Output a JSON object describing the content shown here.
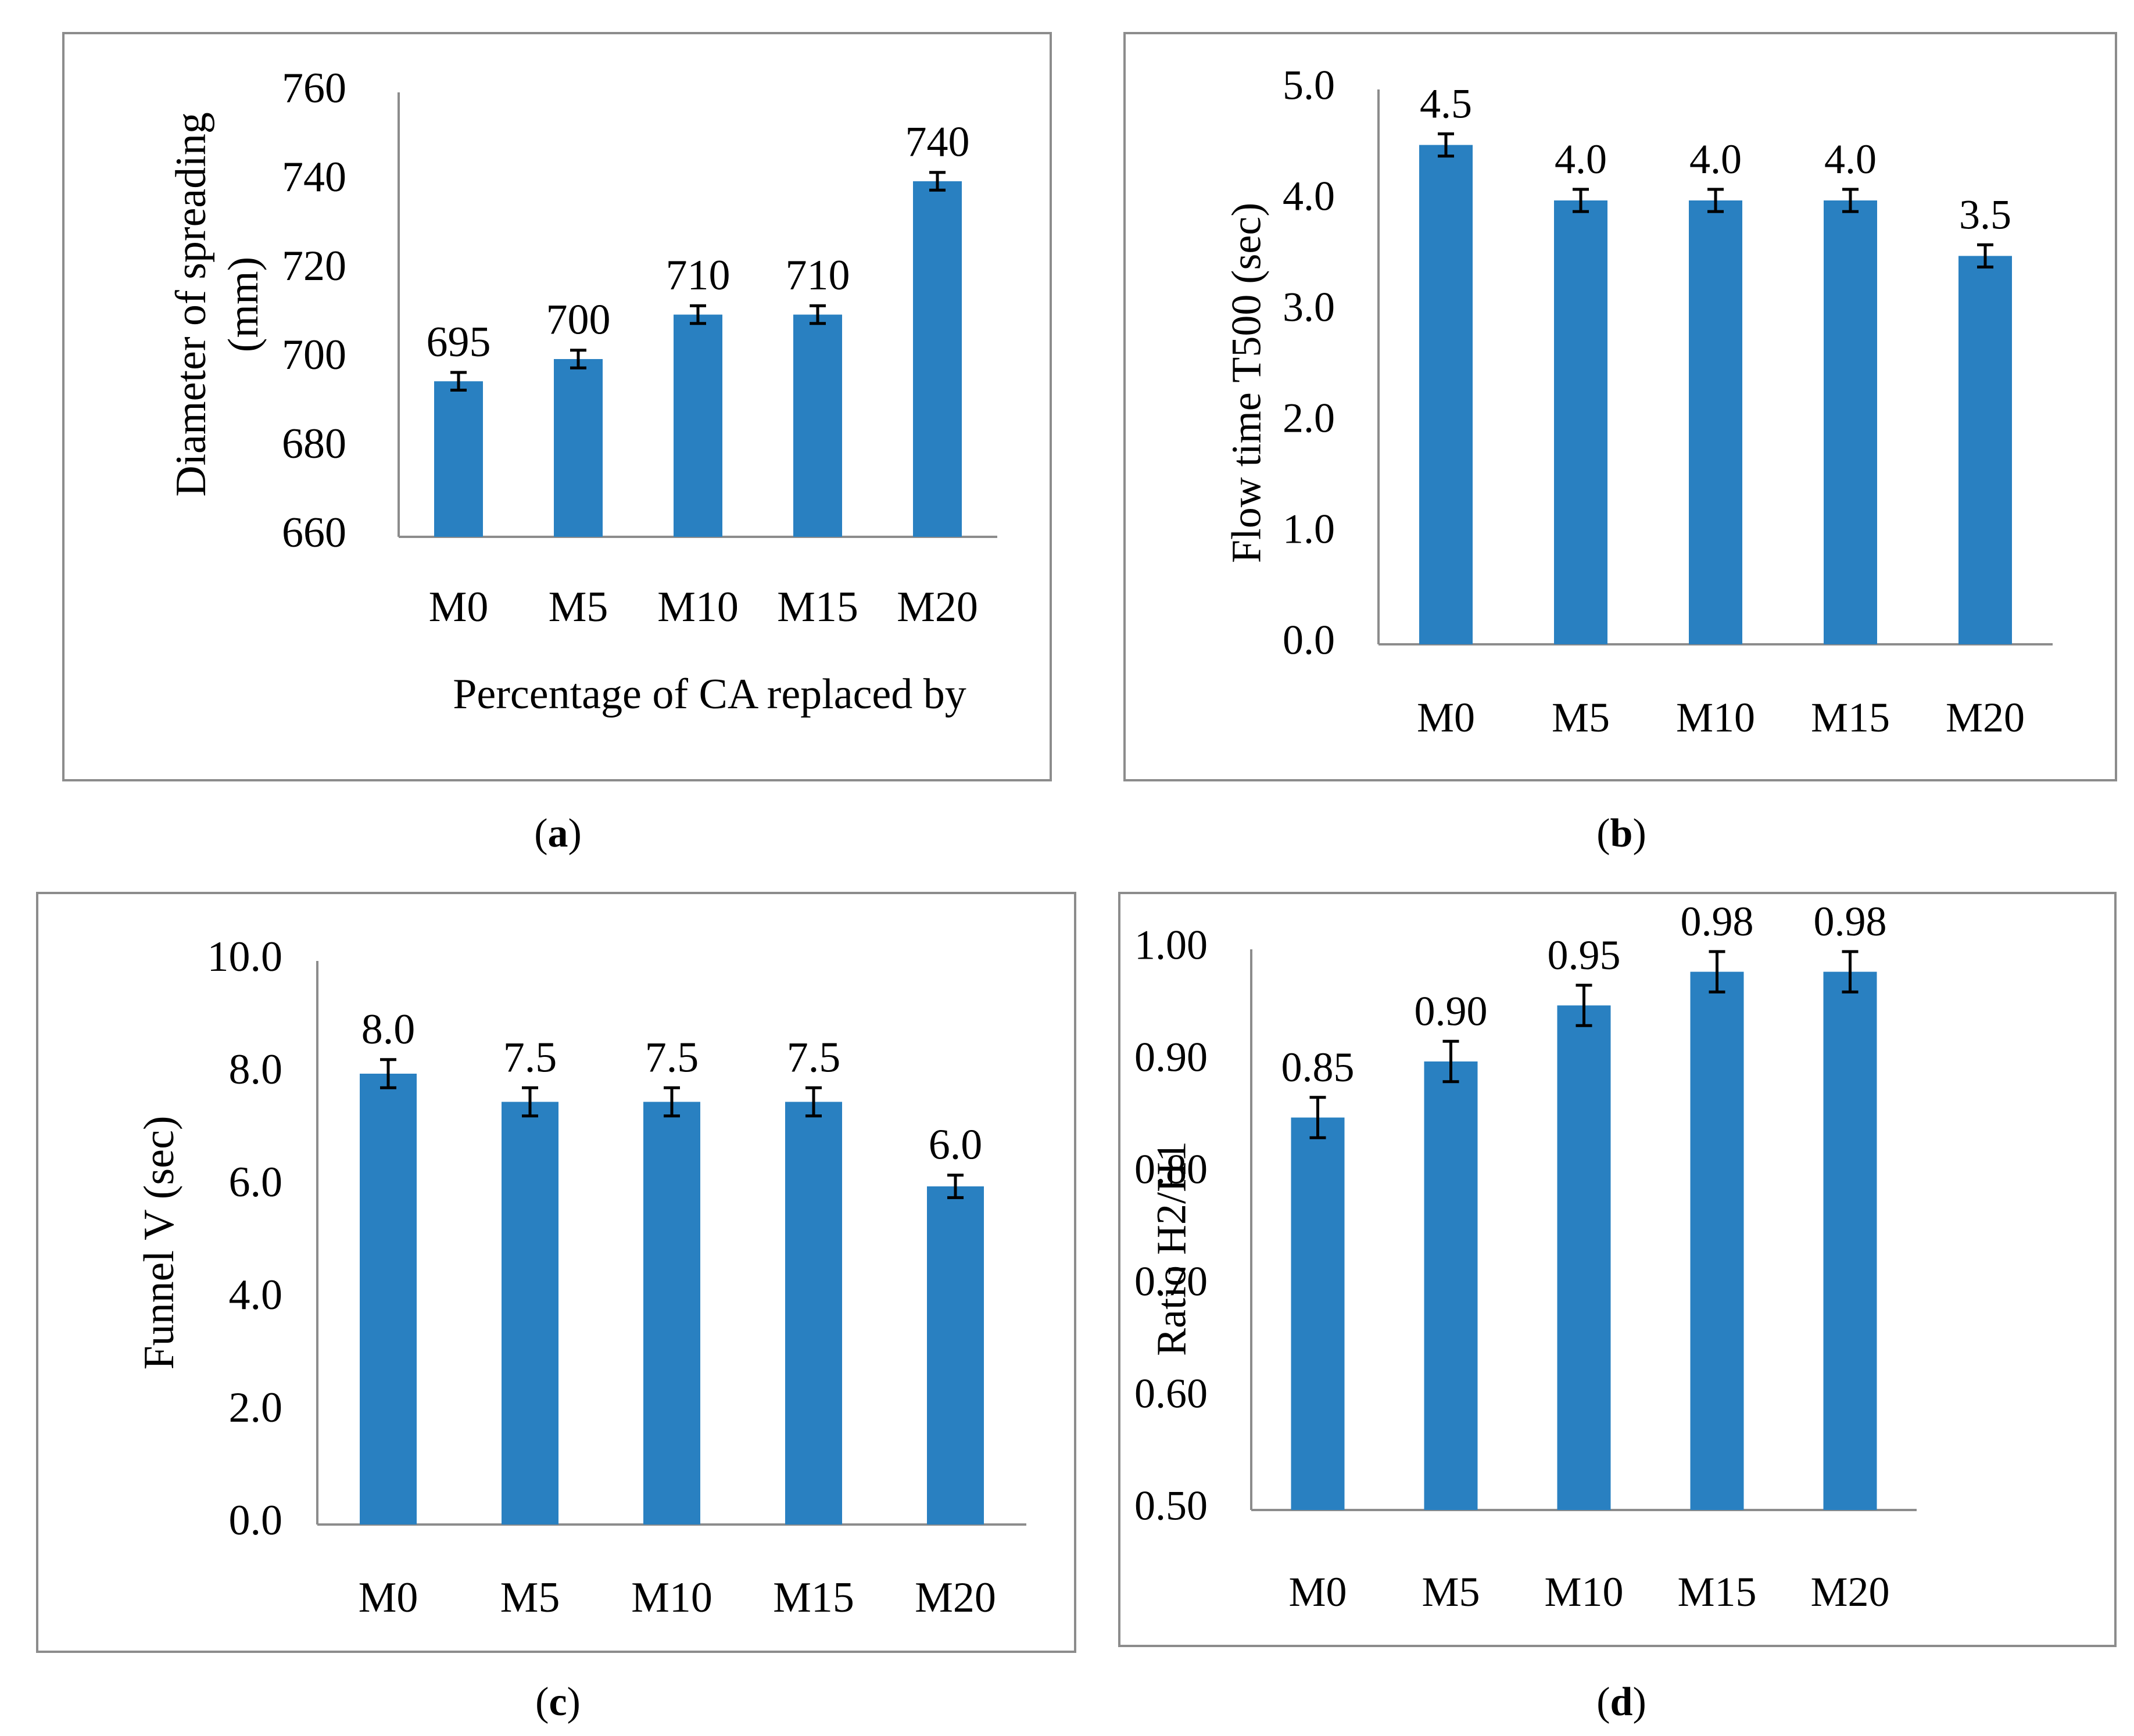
{
  "colors": {
    "bar": "#2980c1",
    "axis": "#8c8c8c",
    "error": "#000000"
  },
  "captions": [
    {
      "open": "(",
      "letter": "a",
      "close": ")"
    },
    {
      "open": "(",
      "letter": "b",
      "close": ")"
    },
    {
      "open": "(",
      "letter": "c",
      "close": ")"
    },
    {
      "open": "(",
      "letter": "d",
      "close": ")"
    }
  ],
  "chart_data": [
    {
      "type": "bar",
      "title": "",
      "categories": [
        "M0",
        "M5",
        "M10",
        "M15",
        "M20"
      ],
      "values": [
        695,
        700,
        710,
        710,
        740
      ],
      "data_labels": [
        "695",
        "700",
        "710",
        "710",
        "740"
      ],
      "error": [
        2,
        2,
        2,
        2,
        2
      ],
      "ylabel_lines": [
        "Diameter of spreading",
        "(mm)"
      ],
      "xlabel": "Percentage of CA replaced by",
      "ylim": [
        660,
        760
      ],
      "yticks": [
        660,
        680,
        700,
        720,
        740,
        760
      ],
      "ytick_labels": [
        "660",
        "680",
        "700",
        "720",
        "740",
        "760"
      ],
      "grid": false
    },
    {
      "type": "bar",
      "title": "",
      "categories": [
        "M0",
        "M5",
        "M10",
        "M15",
        "M20"
      ],
      "values": [
        4.5,
        4.0,
        4.0,
        4.0,
        3.5
      ],
      "data_labels": [
        "4.5",
        "4.0",
        "4.0",
        "4.0",
        "3.5"
      ],
      "error": [
        0.1,
        0.1,
        0.1,
        0.1,
        0.1
      ],
      "ylabel_lines": [
        "Flow time T500 (sec)"
      ],
      "xlabel": "",
      "ylim": [
        0,
        5
      ],
      "yticks": [
        0,
        1,
        2,
        3,
        4,
        5
      ],
      "ytick_labels": [
        "0.0",
        "1.0",
        "2.0",
        "3.0",
        "4.0",
        "5.0"
      ],
      "grid": false
    },
    {
      "type": "bar",
      "title": "",
      "categories": [
        "M0",
        "M5",
        "M10",
        "M15",
        "M20"
      ],
      "values": [
        8.0,
        7.5,
        7.5,
        7.5,
        6.0
      ],
      "data_labels": [
        "8.0",
        "7.5",
        "7.5",
        "7.5",
        "6.0"
      ],
      "error": [
        0.25,
        0.25,
        0.25,
        0.25,
        0.2
      ],
      "ylabel_lines": [
        "Funnel V (sec)"
      ],
      "xlabel": "",
      "ylim": [
        0,
        10
      ],
      "yticks": [
        0,
        2,
        4,
        6,
        8,
        10
      ],
      "ytick_labels": [
        "0.0",
        "2.0",
        "4.0",
        "6.0",
        "8.0",
        "10.0"
      ],
      "grid": false
    },
    {
      "type": "bar",
      "title": "",
      "categories": [
        "M0",
        "M5",
        "M10",
        "M15",
        "M20"
      ],
      "values": [
        0.85,
        0.9,
        0.95,
        0.98,
        0.98
      ],
      "data_labels": [
        "0.85",
        "0.90",
        "0.95",
        "0.98",
        "0.98"
      ],
      "error": [
        0.018,
        0.018,
        0.018,
        0.018,
        0.018
      ],
      "ylabel_lines": [
        "Ratio H2/H1"
      ],
      "xlabel": "",
      "ylim": [
        0.5,
        1.0
      ],
      "yticks": [
        0.5,
        0.6,
        0.7,
        0.8,
        0.9,
        1.0
      ],
      "ytick_labels": [
        "0.50",
        "0.60",
        "0.70",
        "0.80",
        "0.90",
        "1.00"
      ],
      "grid": false
    }
  ]
}
